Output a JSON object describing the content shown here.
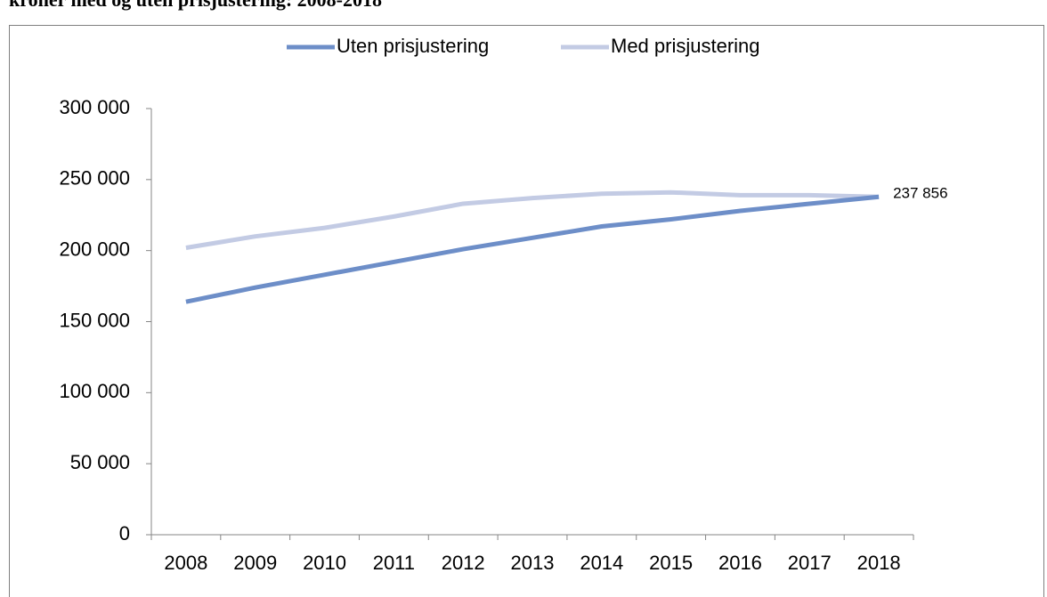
{
  "chart_data": {
    "type": "line",
    "title": "kroner med og uten prisjustering: 2008-2018",
    "categories": [
      "2008",
      "2009",
      "2010",
      "2011",
      "2012",
      "2013",
      "2014",
      "2015",
      "2016",
      "2017",
      "2018"
    ],
    "series": [
      {
        "name": "Uten prisjustering",
        "color": "#6d8ec8",
        "values": [
          164000,
          174000,
          183000,
          192000,
          201000,
          209000,
          217000,
          222000,
          228000,
          233000,
          237856
        ],
        "value_labels": [
          null,
          null,
          null,
          null,
          null,
          null,
          null,
          null,
          null,
          null,
          "237 856"
        ]
      },
      {
        "name": "Med prisjustering",
        "color": "#c3cbe4",
        "values": [
          202000,
          210000,
          216000,
          224000,
          233000,
          237000,
          240000,
          241000,
          239000,
          239000,
          237856
        ]
      }
    ],
    "ylim": [
      0,
      300000
    ],
    "yticks": [
      0,
      {
        "value": 50000,
        "label": "50 000"
      },
      {
        "value": 100000,
        "label": "100 000"
      },
      {
        "value": 150000,
        "label": "150 000"
      },
      {
        "value": 200000,
        "label": "200 000"
      },
      {
        "value": 250000,
        "label": "250 000"
      },
      {
        "value": 300000,
        "label": "300 000"
      }
    ],
    "legend": "top",
    "grid": false
  }
}
